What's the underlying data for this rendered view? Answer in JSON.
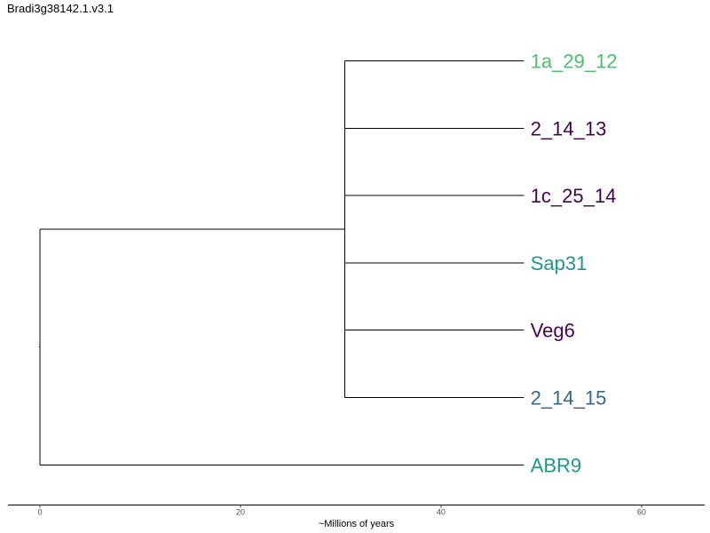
{
  "figure": {
    "title": "Bradi3g38142.1.v3.1"
  },
  "chart_data": {
    "type": "phylogenetic-tree",
    "title": "Bradi3g38142.1.v3.1",
    "xlabel": "~Millions of years",
    "ylabel": "",
    "xlim": [
      -3.2,
      66.3
    ],
    "xticks": [
      0,
      20,
      40,
      60
    ],
    "tick_labels": [
      "0",
      "20",
      "40",
      "60"
    ],
    "tip_time": 48.3,
    "nodes": {
      "root": {
        "time": 0
      },
      "clade": {
        "time": 30.4,
        "parent": "root"
      }
    },
    "tips": [
      {
        "label": "1a_29_12",
        "parent": "clade",
        "color": "#4ac16d"
      },
      {
        "label": "2_14_13",
        "parent": "clade",
        "color": "#440154"
      },
      {
        "label": "1c_25_14",
        "parent": "clade",
        "color": "#440154"
      },
      {
        "label": "Sap31",
        "parent": "clade",
        "color": "#1f968b"
      },
      {
        "label": "Veg6",
        "parent": "clade",
        "color": "#440154"
      },
      {
        "label": "2_14_15",
        "parent": "clade",
        "color": "#31688e"
      },
      {
        "label": "ABR9",
        "parent": "root",
        "color": "#1f968b"
      }
    ]
  }
}
